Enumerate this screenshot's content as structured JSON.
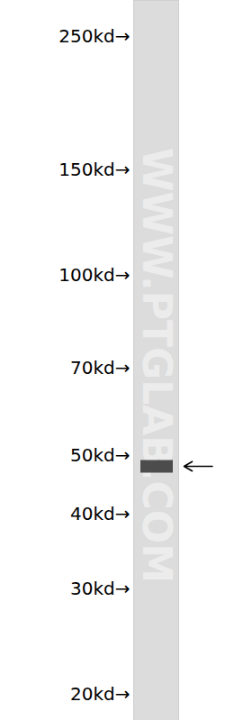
{
  "chart_data": {
    "type": "western_blot",
    "log": "y",
    "ylim": [
      20,
      250
    ],
    "yticks": [
      {
        "value": 250,
        "label": "250kd→"
      },
      {
        "value": 150,
        "label": "150kd→"
      },
      {
        "value": 100,
        "label": "100kd→"
      },
      {
        "value": 70,
        "label": "70kd→"
      },
      {
        "value": 50,
        "label": "50kd→"
      },
      {
        "value": 40,
        "label": "40kd→"
      },
      {
        "value": 30,
        "label": "30kd→"
      },
      {
        "value": 20,
        "label": "20kd→"
      }
    ],
    "bands": [
      48
    ],
    "color": "#333333",
    "watermark": "WWW.PTGLAB.COM"
  }
}
